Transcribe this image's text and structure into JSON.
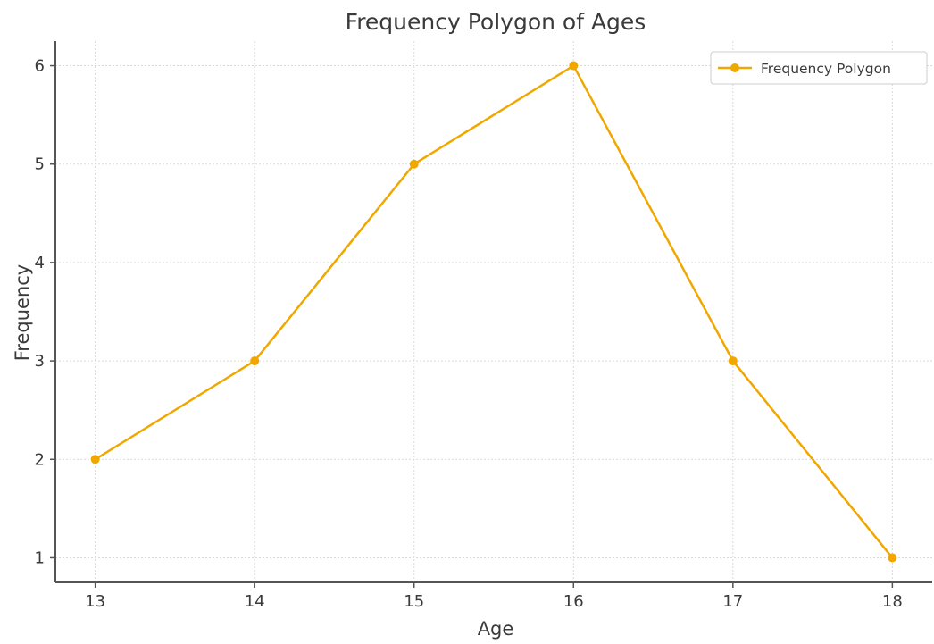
{
  "chart_data": {
    "type": "line",
    "title": "Frequency Polygon of Ages",
    "xlabel": "Age",
    "ylabel": "Frequency",
    "x": [
      13,
      14,
      15,
      16,
      17,
      18
    ],
    "xlim": [
      12.75,
      18.25
    ],
    "ylim": [
      0.75,
      6.25
    ],
    "xticks": [
      13,
      14,
      15,
      16,
      17,
      18
    ],
    "yticks": [
      1,
      2,
      3,
      4,
      5,
      6
    ],
    "grid": true,
    "legend_position": "upper right",
    "series": [
      {
        "name": "Frequency Polygon",
        "color": "#f0a800",
        "marker": "circle",
        "values": [
          2,
          3,
          5,
          6,
          3,
          1
        ]
      }
    ]
  }
}
